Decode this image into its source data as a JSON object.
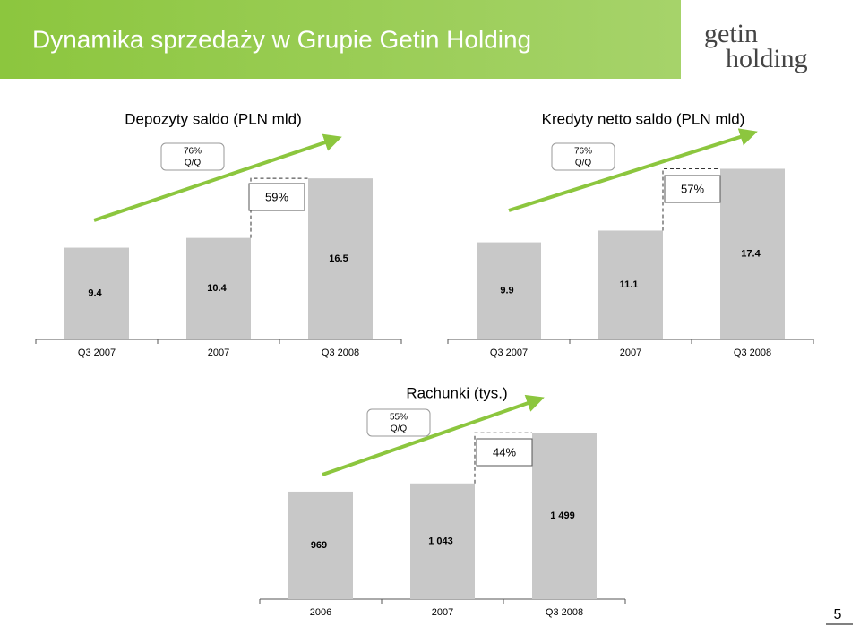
{
  "header": {
    "title": "Dynamika sprzedaży w Grupie Getin Holding",
    "logo": [
      "getin",
      "holding"
    ]
  },
  "page_number": "5",
  "chart_data": [
    {
      "type": "bar",
      "title": "Depozyty saldo (PLN mld)",
      "categories": [
        "Q3 2007",
        "2007",
        "Q3 2008"
      ],
      "values": [
        9.4,
        10.4,
        16.5
      ],
      "color": "#c8c8c8",
      "ylim": [
        0,
        20
      ],
      "growth": [
        "76%",
        "Q/Q"
      ],
      "change": "59%"
    },
    {
      "type": "bar",
      "title": "Kredyty netto saldo (PLN mld)",
      "categories": [
        "Q3 2007",
        "2007",
        "Q3 2008"
      ],
      "values": [
        9.9,
        11.1,
        17.4
      ],
      "color": "#c8c8c8",
      "ylim": [
        0,
        20
      ],
      "growth": [
        "76%",
        "Q/Q"
      ],
      "change": "57%"
    },
    {
      "type": "bar",
      "title": "Rachunki (tys.)",
      "categories": [
        "2006",
        "2007",
        "Q3 2008"
      ],
      "values": [
        969,
        1043,
        1499
      ],
      "value_labels": [
        "969",
        "1 043",
        "1 499"
      ],
      "color": "#c8c8c8",
      "ylim": [
        0,
        1800
      ],
      "growth": [
        "55%",
        "Q/Q"
      ],
      "change": "44%"
    }
  ]
}
